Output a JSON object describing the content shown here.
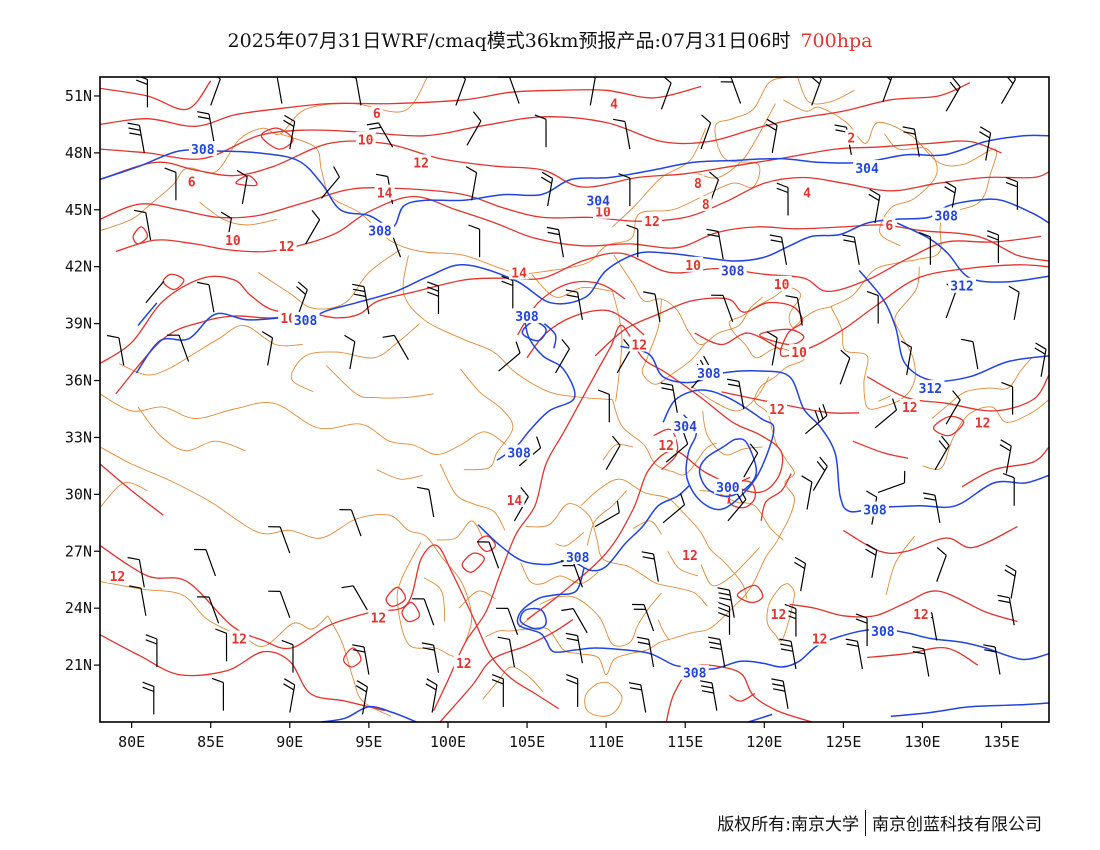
{
  "title": {
    "main": "2025年07月31日WRF/cmaq模式36km预报产品:07月31日06时",
    "level": "700hpa",
    "level_color": "#e0342e"
  },
  "colors": {
    "height_contour": "#2244dd",
    "temperature_contour": "#e0342e",
    "boundary": "#e08a3a",
    "wind_barb": "#000000"
  },
  "map": {
    "lat_labels": [
      "51N",
      "48N",
      "45N",
      "42N",
      "39N",
      "36N",
      "33N",
      "30N",
      "27N",
      "24N",
      "21N"
    ],
    "lon_labels": [
      "80E",
      "85E",
      "90E",
      "95E",
      "100E",
      "105E",
      "110E",
      "115E",
      "120E",
      "125E",
      "130E",
      "135E"
    ],
    "lat_values": [
      51,
      48,
      45,
      42,
      39,
      36,
      33,
      30,
      27,
      24,
      21
    ],
    "lon_values": [
      80,
      85,
      90,
      95,
      100,
      105,
      110,
      115,
      120,
      125,
      130,
      135
    ],
    "extent": {
      "lon_min": 78,
      "lon_max": 138,
      "lat_min": 18,
      "lat_max": 52
    }
  },
  "height_labels": [
    {
      "text": "308",
      "lon": 84.5,
      "lat": 48.2
    },
    {
      "text": "308",
      "lon": 95.7,
      "lat": 43.9
    },
    {
      "text": "308",
      "lon": 91,
      "lat": 39.2
    },
    {
      "text": "308",
      "lon": 105,
      "lat": 39.4
    },
    {
      "text": "304",
      "lon": 109.5,
      "lat": 45.5
    },
    {
      "text": "308",
      "lon": 118,
      "lat": 41.8
    },
    {
      "text": "304",
      "lon": 126.5,
      "lat": 47.2
    },
    {
      "text": "308",
      "lon": 131.5,
      "lat": 44.7
    },
    {
      "text": "312",
      "lon": 132.5,
      "lat": 41
    },
    {
      "text": "312",
      "lon": 130.5,
      "lat": 35.6
    },
    {
      "text": "308",
      "lon": 116.5,
      "lat": 36.4
    },
    {
      "text": "304",
      "lon": 115,
      "lat": 33.6
    },
    {
      "text": "300",
      "lon": 117.7,
      "lat": 30.4
    },
    {
      "text": "308",
      "lon": 104.5,
      "lat": 32.2
    },
    {
      "text": "308",
      "lon": 108.2,
      "lat": 26.7
    },
    {
      "text": "308",
      "lon": 127.5,
      "lat": 22.8
    },
    {
      "text": "308",
      "lon": 115.6,
      "lat": 20.6
    },
    {
      "text": "308",
      "lon": 127,
      "lat": 29.2
    }
  ],
  "temperature_labels": [
    {
      "text": "4",
      "lon": 110.5,
      "lat": 50.6
    },
    {
      "text": "6",
      "lon": 95.5,
      "lat": 50.1
    },
    {
      "text": "6",
      "lon": 83.8,
      "lat": 46.5
    },
    {
      "text": "8",
      "lon": 115.8,
      "lat": 46.4
    },
    {
      "text": "8",
      "lon": 116.3,
      "lat": 45.3
    },
    {
      "text": "2",
      "lon": 125.5,
      "lat": 48.8
    },
    {
      "text": "4",
      "lon": 122.7,
      "lat": 45.9
    },
    {
      "text": "6",
      "lon": 127.9,
      "lat": 44.2
    },
    {
      "text": "10",
      "lon": 94.8,
      "lat": 48.7
    },
    {
      "text": "12",
      "lon": 98.3,
      "lat": 47.5
    },
    {
      "text": "10",
      "lon": 86.4,
      "lat": 43.4
    },
    {
      "text": "12",
      "lon": 89.8,
      "lat": 43.1
    },
    {
      "text": "14",
      "lon": 96,
      "lat": 45.9
    },
    {
      "text": "10",
      "lon": 109.8,
      "lat": 44.9
    },
    {
      "text": "12",
      "lon": 112.9,
      "lat": 44.4
    },
    {
      "text": "14",
      "lon": 104.5,
      "lat": 41.7
    },
    {
      "text": "10",
      "lon": 89.9,
      "lat": 39.3
    },
    {
      "text": "10",
      "lon": 115.5,
      "lat": 42.1
    },
    {
      "text": "10",
      "lon": 121.1,
      "lat": 41.1
    },
    {
      "text": "10",
      "lon": 122.2,
      "lat": 37.5
    },
    {
      "text": "12",
      "lon": 112.1,
      "lat": 37.9
    },
    {
      "text": "12",
      "lon": 120.8,
      "lat": 34.5
    },
    {
      "text": "12",
      "lon": 113.8,
      "lat": 32.6
    },
    {
      "text": "12",
      "lon": 129.2,
      "lat": 34.6
    },
    {
      "text": "12",
      "lon": 133.8,
      "lat": 33.8
    },
    {
      "text": "14",
      "lon": 104.2,
      "lat": 29.7
    },
    {
      "text": "12",
      "lon": 115.3,
      "lat": 26.8
    },
    {
      "text": "12",
      "lon": 79.1,
      "lat": 25.7
    },
    {
      "text": "12",
      "lon": 95.6,
      "lat": 23.5
    },
    {
      "text": "12",
      "lon": 86.8,
      "lat": 22.4
    },
    {
      "text": "12",
      "lon": 101,
      "lat": 21.1
    },
    {
      "text": "12",
      "lon": 120.9,
      "lat": 23.7
    },
    {
      "text": "12",
      "lon": 123.5,
      "lat": 22.4
    },
    {
      "text": "12",
      "lon": 129.9,
      "lat": 23.7
    }
  ],
  "footer": {
    "copyright_left": "版权所有:南京大学",
    "copyright_right": "南京创蓝科技有限公司"
  }
}
